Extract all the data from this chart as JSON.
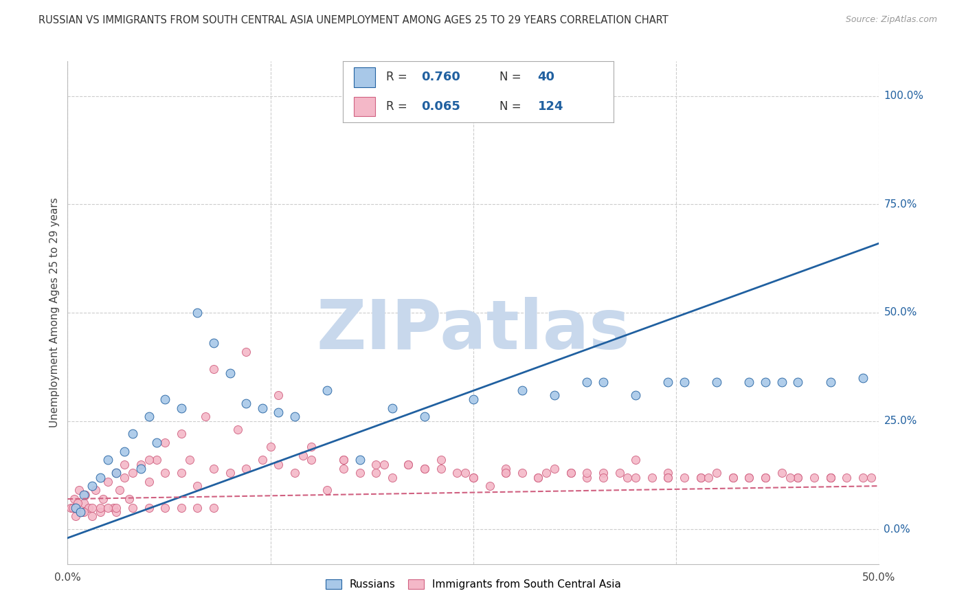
{
  "title": "RUSSIAN VS IMMIGRANTS FROM SOUTH CENTRAL ASIA UNEMPLOYMENT AMONG AGES 25 TO 29 YEARS CORRELATION CHART",
  "source": "Source: ZipAtlas.com",
  "ylabel": "Unemployment Among Ages 25 to 29 years",
  "right_yticks": [
    "0.0%",
    "25.0%",
    "50.0%",
    "75.0%",
    "100.0%"
  ],
  "right_ytick_vals": [
    0,
    25,
    50,
    75,
    100
  ],
  "blue_R": 0.76,
  "blue_N": 40,
  "pink_R": 0.065,
  "pink_N": 124,
  "blue_color": "#a8c8e8",
  "pink_color": "#f4b8c8",
  "blue_line_color": "#2060a0",
  "pink_line_color": "#d06080",
  "watermark": "ZIPatlas",
  "watermark_color": "#c8d8ec",
  "legend_label_blue": "Russians",
  "legend_label_pink": "Immigrants from South Central Asia",
  "blue_scatter_x": [
    0.5,
    0.8,
    1.0,
    1.5,
    2.0,
    2.5,
    3.0,
    3.5,
    4.0,
    4.5,
    5.0,
    5.5,
    6.0,
    7.0,
    8.0,
    9.0,
    10.0,
    11.0,
    12.0,
    13.0,
    14.0,
    16.0,
    18.0,
    20.0,
    22.0,
    25.0,
    28.0,
    30.0,
    32.0,
    33.0,
    35.0,
    37.0,
    38.0,
    40.0,
    42.0,
    43.0,
    44.0,
    45.0,
    47.0,
    49.0
  ],
  "blue_scatter_y": [
    5,
    4,
    8,
    10,
    12,
    16,
    13,
    18,
    22,
    14,
    26,
    20,
    30,
    28,
    50,
    43,
    36,
    29,
    28,
    27,
    26,
    32,
    16,
    28,
    26,
    30,
    32,
    31,
    34,
    34,
    31,
    34,
    34,
    34,
    34,
    34,
    34,
    34,
    34,
    35
  ],
  "pink_scatter_x": [
    0.2,
    0.4,
    0.5,
    0.7,
    0.9,
    1.0,
    1.1,
    1.3,
    1.5,
    1.7,
    2.0,
    2.2,
    2.5,
    2.8,
    3.0,
    3.2,
    3.5,
    3.8,
    4.0,
    4.5,
    5.0,
    5.5,
    6.0,
    7.0,
    7.5,
    8.0,
    9.0,
    10.0,
    11.0,
    12.0,
    13.0,
    14.0,
    15.0,
    16.0,
    17.0,
    18.0,
    19.0,
    20.0,
    21.0,
    22.0,
    23.0,
    24.0,
    25.0,
    26.0,
    27.0,
    28.0,
    29.0,
    30.0,
    31.0,
    32.0,
    33.0,
    34.0,
    35.0,
    36.0,
    37.0,
    38.0,
    39.0,
    40.0,
    41.0,
    42.0,
    43.0,
    44.0,
    45.0,
    46.0,
    47.0,
    48.0,
    49.0,
    3.0,
    5.0,
    7.0,
    9.0,
    11.0,
    13.0,
    15.0,
    17.0,
    19.0,
    21.0,
    23.0,
    25.0,
    27.0,
    29.0,
    31.0,
    33.0,
    35.0,
    37.0,
    39.0,
    41.0,
    43.0,
    45.0,
    47.0,
    3.5,
    6.0,
    8.5,
    10.5,
    12.5,
    14.5,
    17.0,
    19.5,
    22.0,
    24.5,
    27.0,
    29.5,
    32.0,
    34.5,
    37.0,
    39.5,
    42.0,
    44.5,
    47.0,
    49.5,
    0.3,
    0.6,
    1.0,
    1.5,
    2.0,
    2.5,
    3.0,
    4.0,
    5.0,
    6.0,
    7.0,
    8.0,
    9.0
  ],
  "pink_scatter_y": [
    5,
    7,
    3,
    9,
    4,
    6,
    8,
    5,
    3,
    9,
    4,
    7,
    11,
    5,
    4,
    9,
    12,
    7,
    13,
    15,
    11,
    16,
    13,
    13,
    16,
    10,
    14,
    13,
    14,
    16,
    15,
    13,
    16,
    9,
    14,
    13,
    13,
    12,
    15,
    14,
    16,
    13,
    12,
    10,
    13,
    13,
    12,
    14,
    13,
    12,
    13,
    13,
    16,
    12,
    13,
    12,
    12,
    13,
    12,
    12,
    12,
    13,
    12,
    12,
    12,
    12,
    12,
    13,
    16,
    22,
    37,
    41,
    31,
    19,
    16,
    15,
    15,
    14,
    12,
    14,
    12,
    13,
    12,
    12,
    12,
    12,
    12,
    12,
    12,
    12,
    15,
    20,
    26,
    23,
    19,
    17,
    16,
    15,
    14,
    13,
    13,
    13,
    13,
    12,
    12,
    12,
    12,
    12,
    12,
    12,
    5,
    6,
    4,
    5,
    5,
    5,
    5,
    5,
    5,
    5,
    5,
    5,
    5
  ],
  "blue_trend_x": [
    0,
    50
  ],
  "blue_trend_y": [
    -2,
    66
  ],
  "pink_trend_x": [
    0,
    50
  ],
  "pink_trend_y": [
    7,
    10
  ],
  "xmin": 0,
  "xmax": 50,
  "ymin": -8,
  "ymax": 108
}
